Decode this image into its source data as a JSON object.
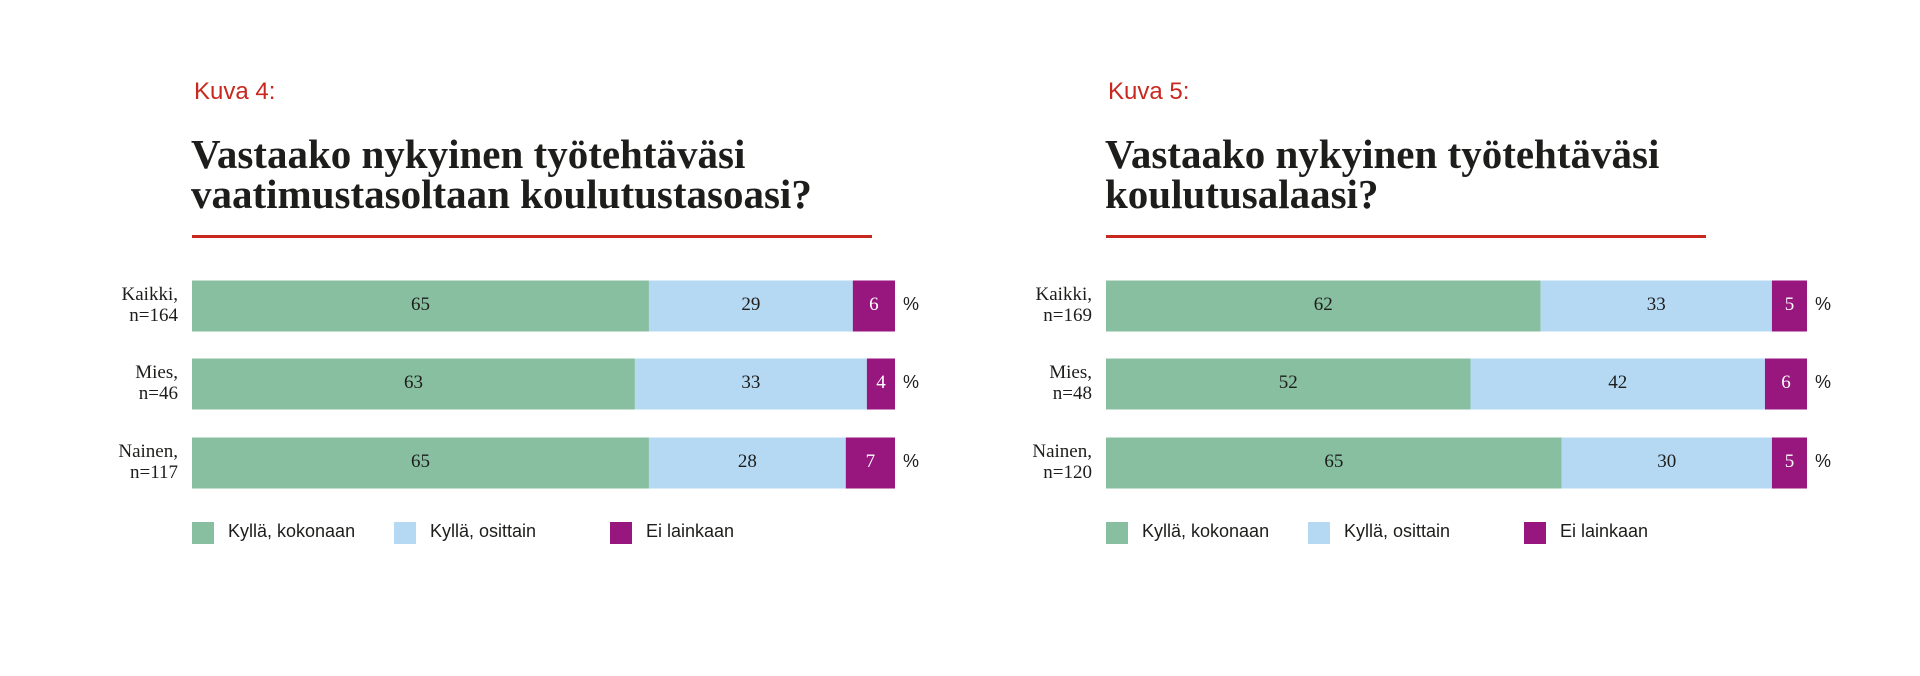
{
  "chart_data": [
    {
      "type": "stacked_bar_horizontal",
      "figure_label": "Kuva 4:",
      "title": "Vastaako nykyinen työtehtäväsi\nvaatimustasoltaan koulutustasoasi?",
      "categories": [
        "Kaikki,\nn=164",
        "Mies,\nn=46",
        "Nainen,\nn=117"
      ],
      "unit": "%",
      "xlim": [
        0,
        100
      ],
      "series": [
        {
          "name": "Kyllä, kokonaan",
          "color": "#88bfa1",
          "values": [
            65,
            63,
            65
          ]
        },
        {
          "name": "Kyllä, osittain",
          "color": "#b5d8f3",
          "values": [
            29,
            33,
            28
          ]
        },
        {
          "name": "Ei lainkaan",
          "color": "#98177e",
          "values": [
            6,
            4,
            7
          ]
        }
      ]
    },
    {
      "type": "stacked_bar_horizontal",
      "figure_label": "Kuva 5:",
      "title": "Vastaako nykyinen työtehtäväsi\nkoulutusalaasi?",
      "categories": [
        "Kaikki,\nn=169",
        "Mies,\nn=48",
        "Nainen,\nn=120"
      ],
      "unit": "%",
      "xlim": [
        0,
        100
      ],
      "series": [
        {
          "name": "Kyllä, kokonaan",
          "color": "#88bfa1",
          "values": [
            62,
            52,
            65
          ]
        },
        {
          "name": "Kyllä, osittain",
          "color": "#b5d8f3",
          "values": [
            33,
            42,
            30
          ]
        },
        {
          "name": "Ei lainkaan",
          "color": "#98177e",
          "values": [
            5,
            6,
            5
          ]
        }
      ]
    }
  ]
}
